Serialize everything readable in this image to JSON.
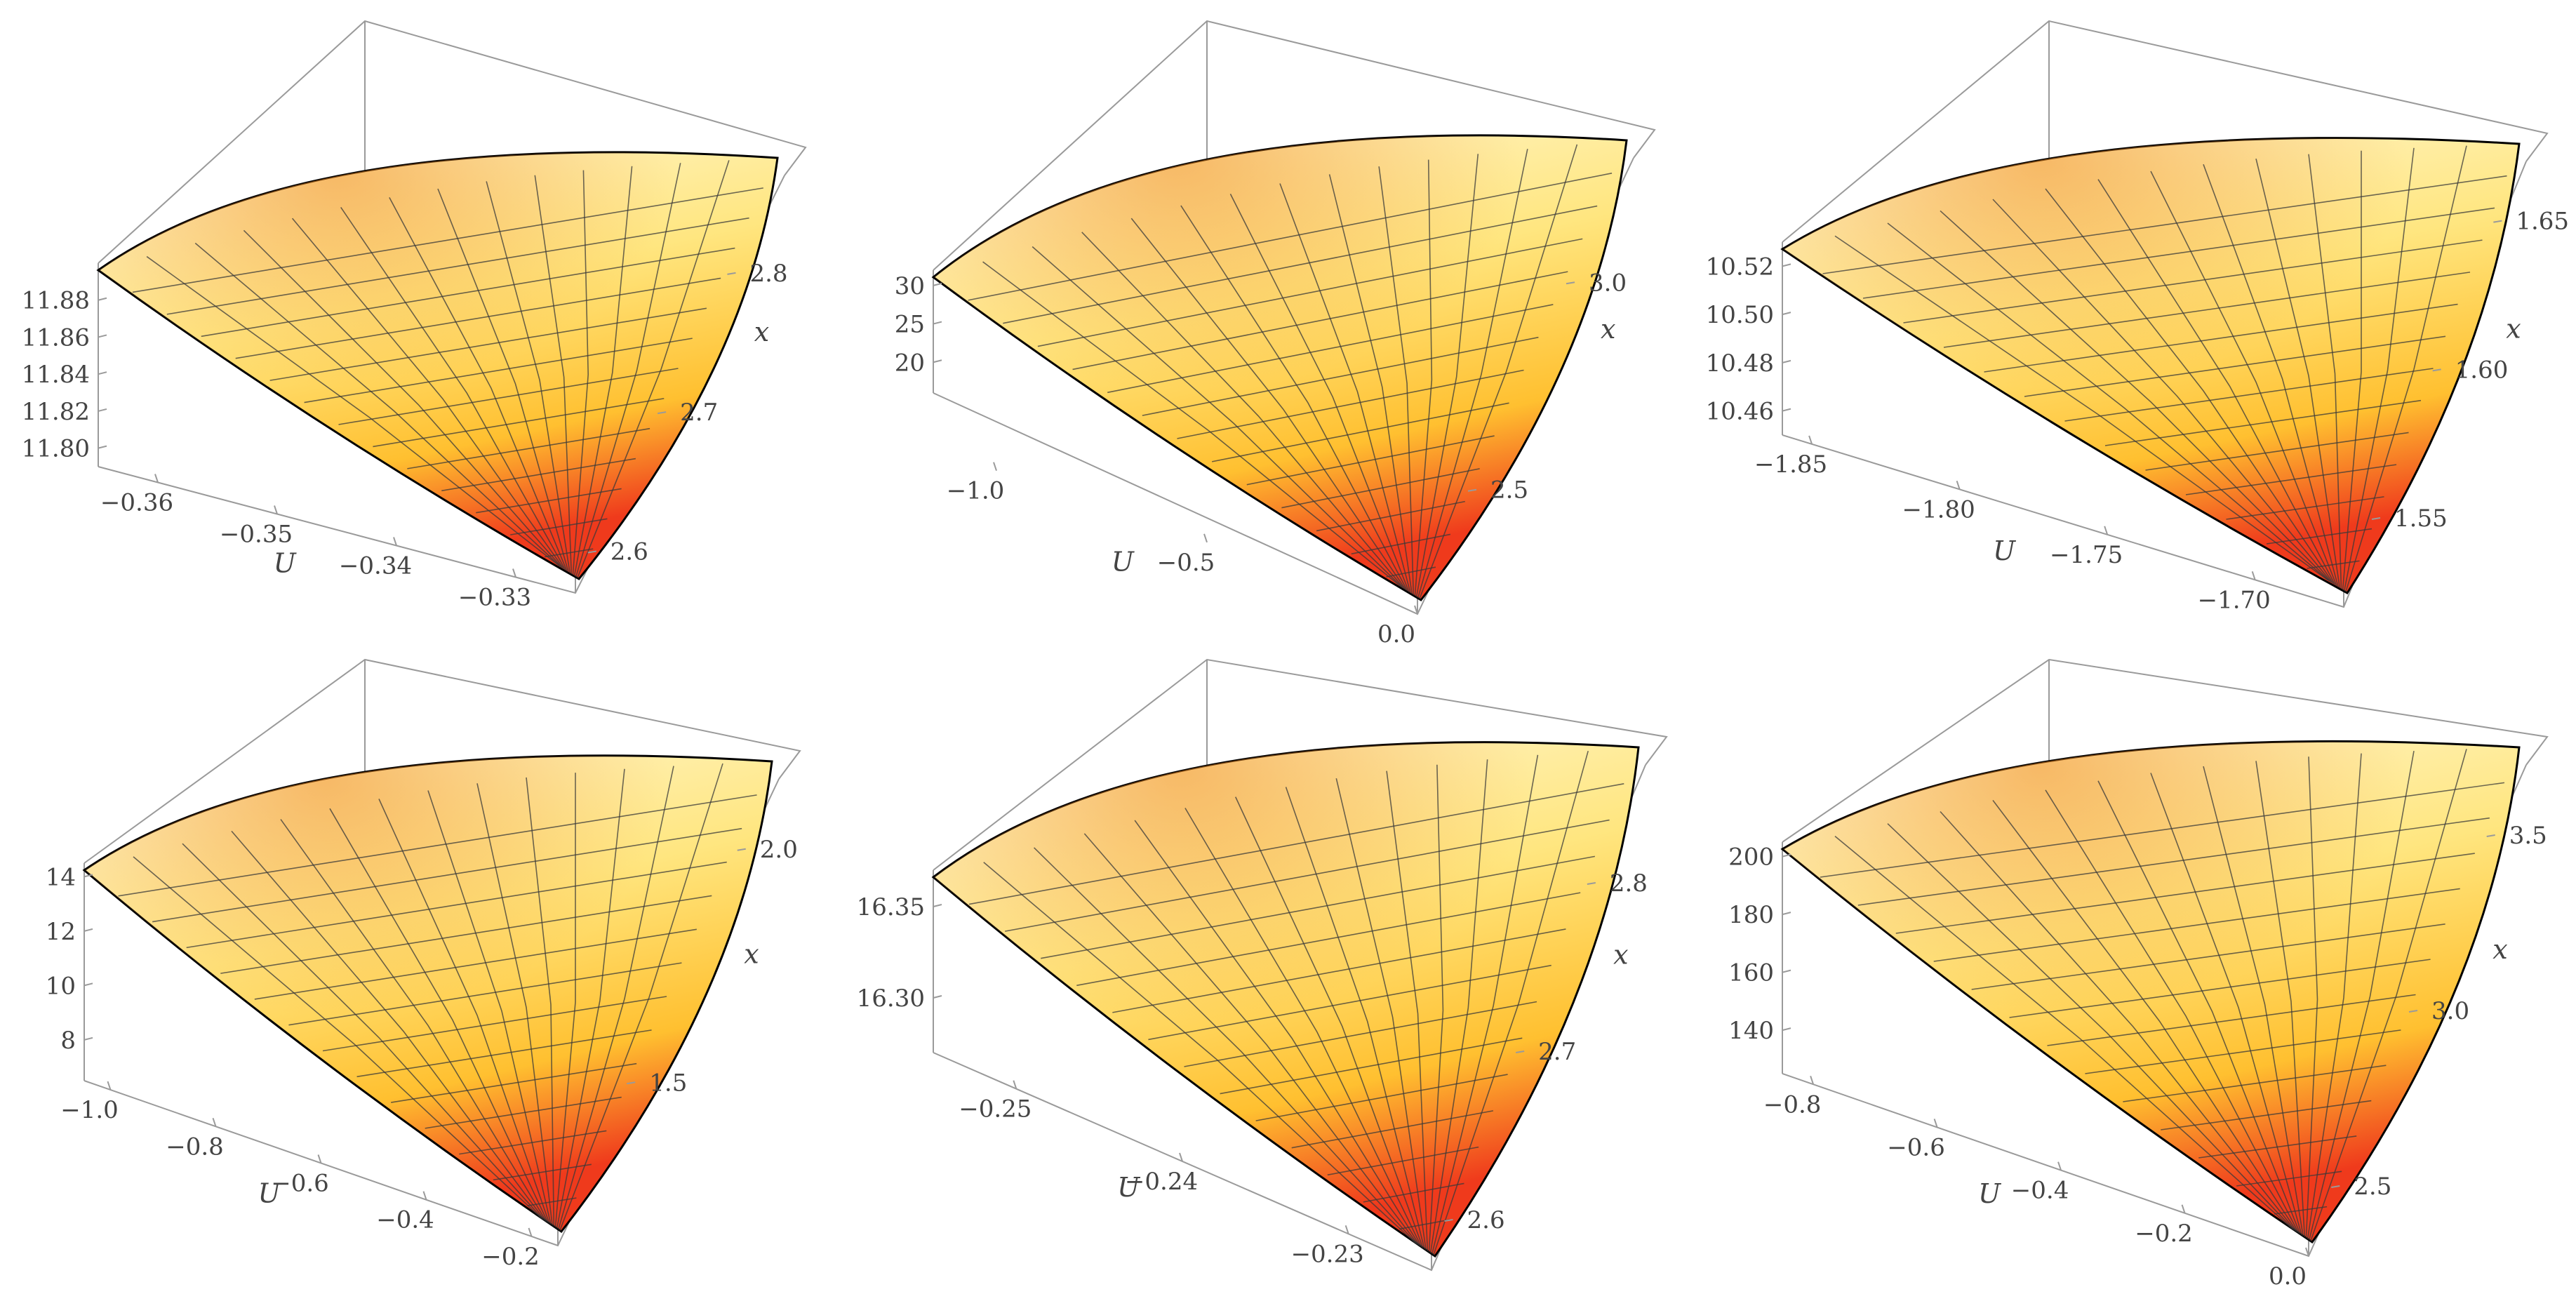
{
  "colors": {
    "box": "#9a9a9a",
    "mesh": "#3a3a3a",
    "edge": "#000000",
    "surface_low": "#fff6c8",
    "surface_mid": "#ffc93a",
    "surface_high": "#ef3a1c"
  },
  "chart_data": [
    {
      "type": "surface3d",
      "xlabel": "U",
      "ylabel": "x",
      "u_ticks": [
        "−0.36",
        "−0.35",
        "−0.34",
        "−0.33"
      ],
      "u_range": [
        -0.365,
        -0.325
      ],
      "x_ticks": [
        "2.6",
        "2.7",
        "2.8"
      ],
      "x_range": [
        2.57,
        2.87
      ],
      "z_ticks": [
        "11.80",
        "11.82",
        "11.84",
        "11.86",
        "11.88"
      ],
      "z_range": [
        11.79,
        11.9
      ]
    },
    {
      "type": "surface3d",
      "xlabel": "U",
      "ylabel": "x",
      "u_ticks": [
        "−1.0",
        "−0.5",
        "0.0"
      ],
      "u_range": [
        -1.15,
        0.0
      ],
      "x_ticks": [
        "2.5",
        "3.0"
      ],
      "x_range": [
        2.2,
        3.3
      ],
      "z_ticks": [
        "20",
        "25",
        "30"
      ],
      "z_range": [
        16,
        32
      ]
    },
    {
      "type": "surface3d",
      "xlabel": "U",
      "ylabel": "x",
      "u_ticks": [
        "−1.85",
        "−1.80",
        "−1.75",
        "−1.70"
      ],
      "u_range": [
        -1.86,
        -1.67
      ],
      "x_ticks": [
        "1.55",
        "1.60",
        "1.65"
      ],
      "x_range": [
        1.52,
        1.67
      ],
      "z_ticks": [
        "10.46",
        "10.48",
        "10.50",
        "10.52"
      ],
      "z_range": [
        10.45,
        10.53
      ]
    },
    {
      "type": "surface3d",
      "xlabel": "U",
      "ylabel": "x",
      "u_ticks": [
        "−1.0",
        "−0.8",
        "−0.6",
        "−0.4",
        "−0.2"
      ],
      "u_range": [
        -1.05,
        -0.15
      ],
      "x_ticks": [
        "1.5",
        "2.0"
      ],
      "x_range": [
        1.15,
        2.15
      ],
      "z_ticks": [
        "8",
        "10",
        "12",
        "14"
      ],
      "z_range": [
        6.5,
        14.5
      ]
    },
    {
      "type": "surface3d",
      "xlabel": "U",
      "ylabel": "x",
      "u_ticks": [
        "−0.25",
        "−0.24",
        "−0.23"
      ],
      "u_range": [
        -0.255,
        -0.225
      ],
      "x_ticks": [
        "2.6",
        "2.7",
        "2.8"
      ],
      "x_range": [
        2.57,
        2.87
      ],
      "z_ticks": [
        "16.30",
        "16.35"
      ],
      "z_range": [
        16.27,
        16.37
      ]
    },
    {
      "type": "surface3d",
      "xlabel": "U",
      "ylabel": "x",
      "u_ticks": [
        "−0.8",
        "−0.6",
        "−0.4",
        "−0.2",
        "0.0"
      ],
      "u_range": [
        -0.85,
        0.0
      ],
      "x_ticks": [
        "2.5",
        "3.0",
        "3.5"
      ],
      "x_range": [
        2.3,
        3.7
      ],
      "z_ticks": [
        "140",
        "160",
        "180",
        "200"
      ],
      "z_range": [
        125,
        205
      ]
    }
  ]
}
